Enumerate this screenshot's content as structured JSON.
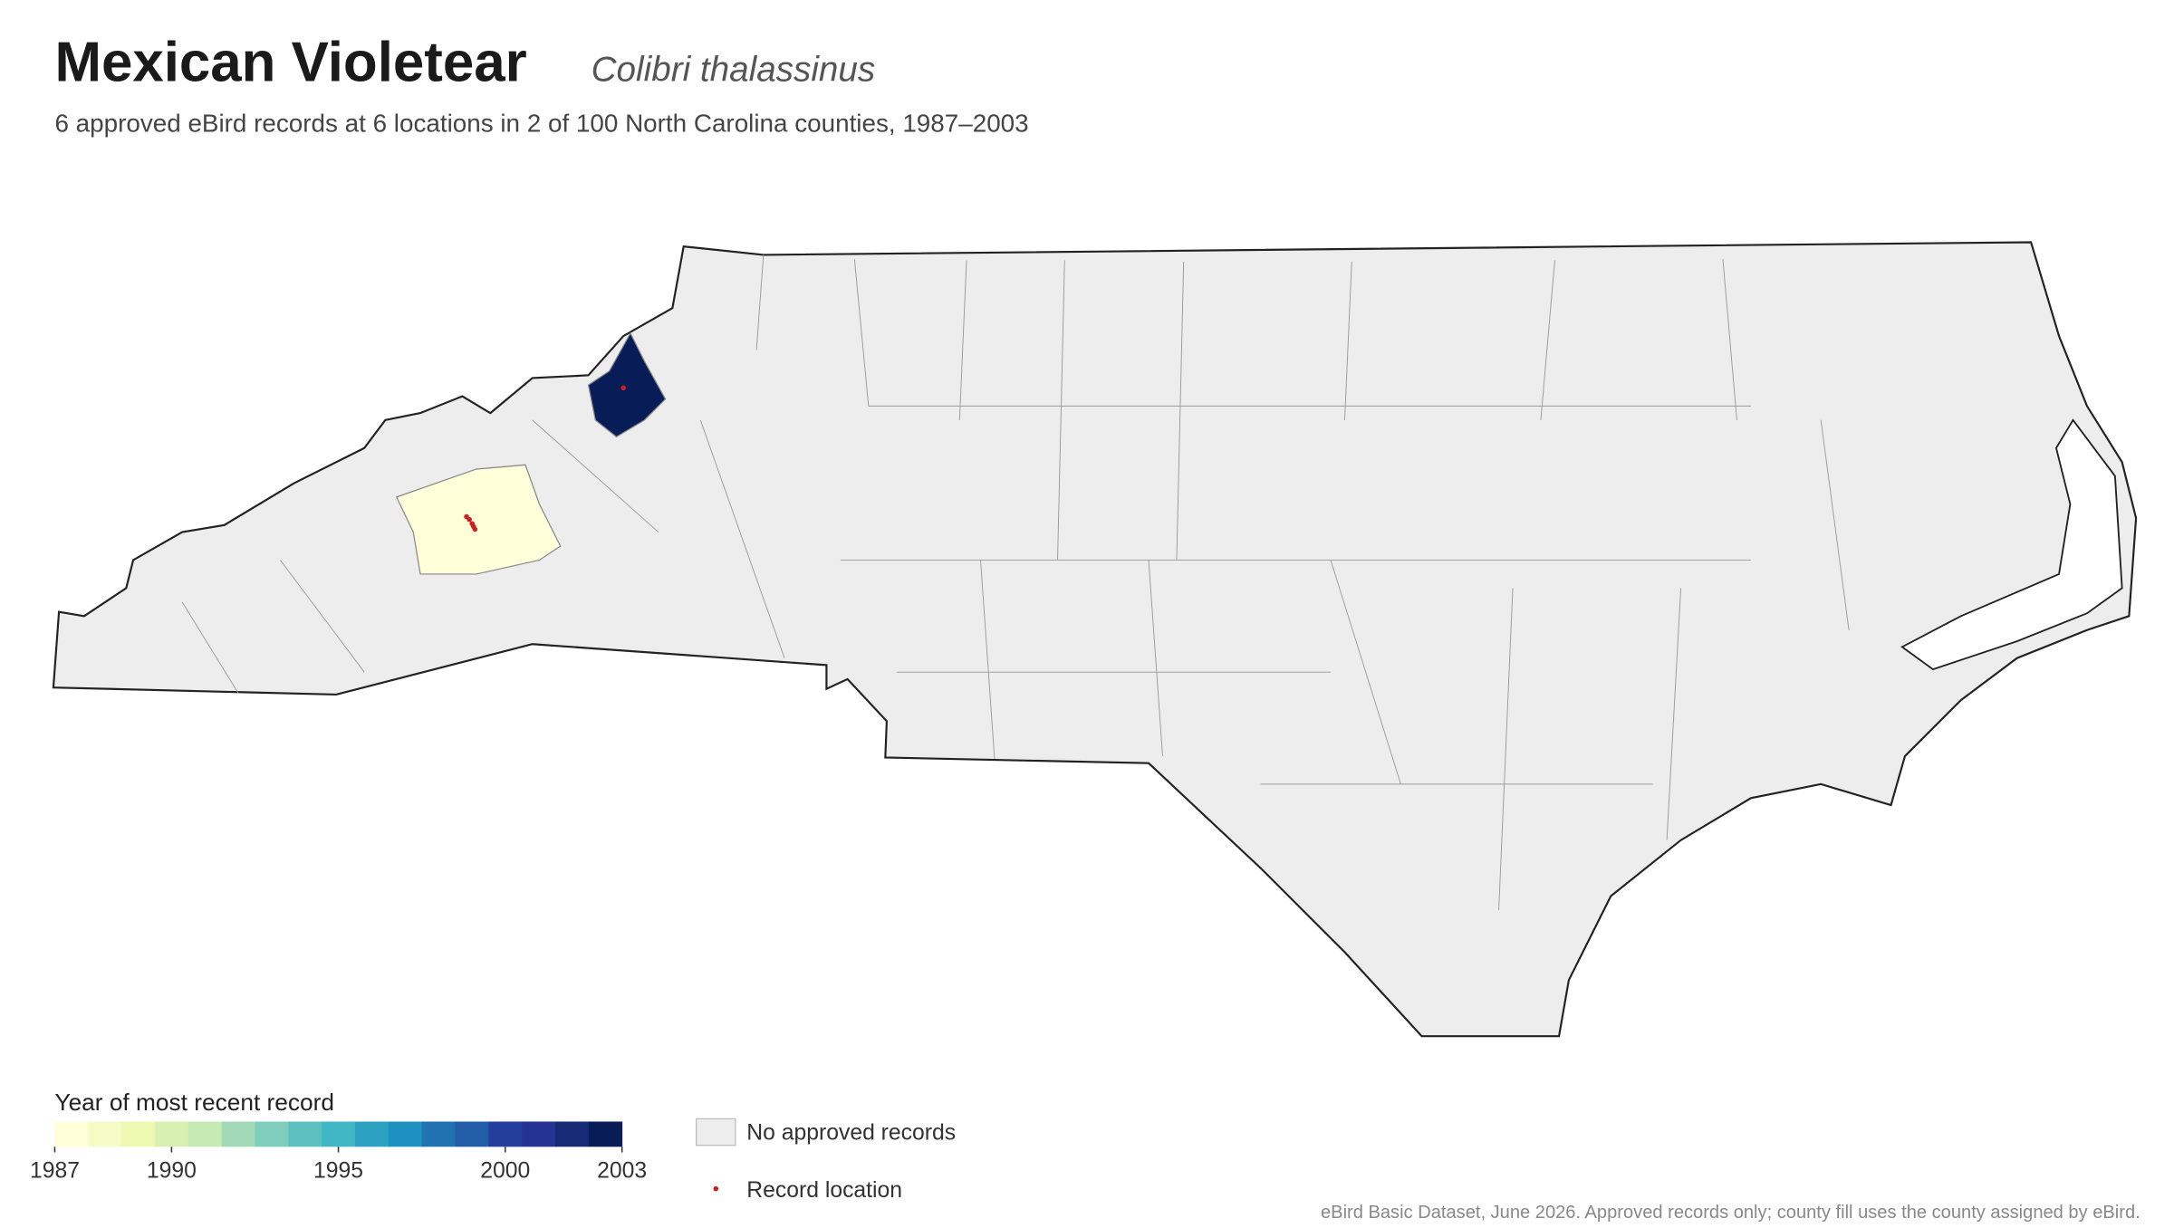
{
  "header": {
    "title": "Mexican Violetear",
    "scientific_name": "Colibri thalassinus",
    "subtitle": "6 approved eBird records at 6 locations in 2 of 100 North Carolina counties, 1987–2003"
  },
  "highlighted_counties": [
    {
      "year": 1987
    },
    {
      "year": 2003
    }
  ],
  "legend": {
    "colorbar_title": "Year of most recent record",
    "range": [
      1987,
      2003
    ],
    "ticks": [
      1987,
      1990,
      1995,
      2000,
      2003
    ],
    "colors": [
      "#ffffd9",
      "#f6fbc6",
      "#edf8b1",
      "#d9f0b3",
      "#c7e9b4",
      "#a2dab8",
      "#7fcdbb",
      "#5dc0c0",
      "#41b6c4",
      "#2ca1c2",
      "#1d91c0",
      "#2072b1",
      "#225ea8",
      "#243e9c",
      "#253494",
      "#172a76",
      "#081d58"
    ],
    "no_records_label": "No approved records",
    "no_records_color": "#ededed",
    "record_label": "Record location",
    "record_color": "#cc1f1f"
  },
  "footer": "eBird Basic Dataset, June 2026. Approved records only; county fill uses the county assigned by eBird."
}
